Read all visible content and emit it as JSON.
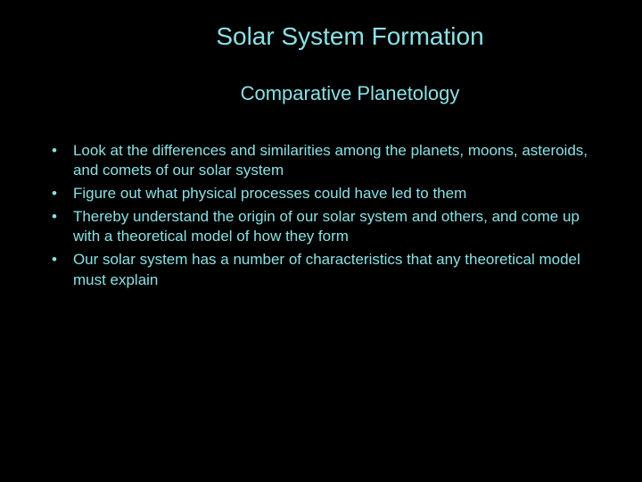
{
  "background_color": "#000000",
  "text_color": "#8be0e5",
  "title": "Solar System Formation",
  "title_fontsize": 28,
  "subtitle": "Comparative Planetology",
  "subtitle_fontsize": 22,
  "body_fontsize": 17,
  "bullets": [
    "Look at the differences and similarities among the planets, moons, asteroids, and comets of our solar system",
    "Figure out what physical processes could have led to them",
    "Thereby understand the origin of our solar system and others, and come up with a theoretical model of how they form",
    "Our solar system has a number of characteristics that any theoretical model must explain"
  ],
  "bullet_marker": "•"
}
